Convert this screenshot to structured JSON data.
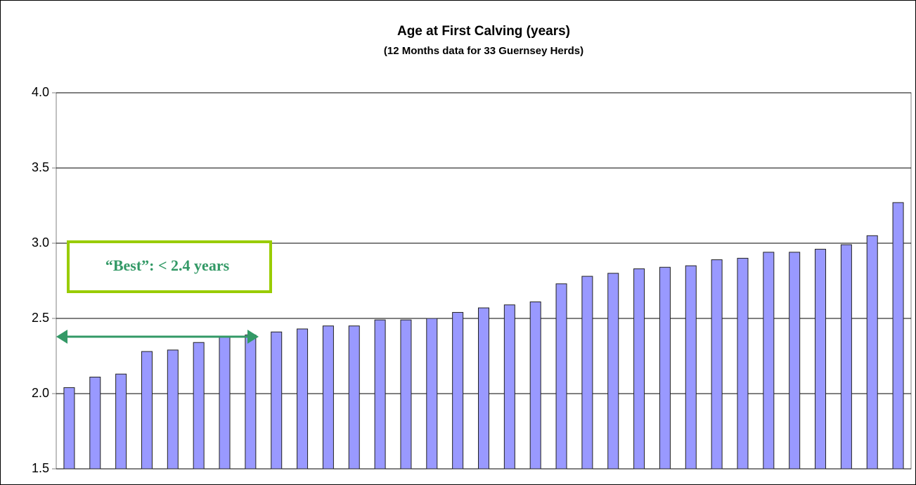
{
  "chart_data": {
    "type": "bar",
    "title": "Age at First Calving (years)",
    "subtitle": "(12 Months data for 33 Guernsey Herds)",
    "annotation": "“Best”: < 2.4 years",
    "values": [
      2.04,
      2.11,
      2.13,
      2.28,
      2.29,
      2.34,
      2.38,
      2.39,
      2.41,
      2.43,
      2.45,
      2.45,
      2.49,
      2.49,
      2.5,
      2.54,
      2.57,
      2.59,
      2.61,
      2.73,
      2.78,
      2.8,
      2.83,
      2.84,
      2.85,
      2.89,
      2.9,
      2.94,
      2.94,
      2.96,
      2.99,
      3.05,
      3.27
    ],
    "color": "#9999ff",
    "ylim": [
      1.5,
      4.0
    ],
    "yticks": [
      1.5,
      {
        "value": 2.0,
        "label": "2.0"
      },
      2.5,
      {
        "value": 3.0,
        "label": "3.0"
      },
      3.5,
      {
        "value": 4.0,
        "label": "4.0"
      }
    ],
    "grid": true
  }
}
